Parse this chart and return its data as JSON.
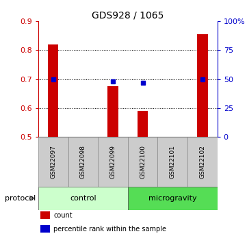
{
  "title": "GDS928 / 1065",
  "samples": [
    "GSM22097",
    "GSM22098",
    "GSM22099",
    "GSM22100",
    "GSM22101",
    "GSM22102"
  ],
  "red_values": [
    0.82,
    null,
    0.675,
    0.59,
    null,
    0.855
  ],
  "blue_values": [
    49.5,
    null,
    48.0,
    47.0,
    null,
    50.0
  ],
  "left_ylim": [
    0.5,
    0.9
  ],
  "right_ylim": [
    0,
    100
  ],
  "left_yticks": [
    0.5,
    0.6,
    0.7,
    0.8,
    0.9
  ],
  "right_yticks": [
    0,
    25,
    50,
    75,
    100
  ],
  "right_yticklabels": [
    "0",
    "25",
    "50",
    "75",
    "100%"
  ],
  "left_tick_color": "#cc0000",
  "right_tick_color": "#0000cc",
  "protocol_groups": [
    {
      "label": "control",
      "start": 0,
      "end": 2,
      "color": "#ccffcc"
    },
    {
      "label": "microgravity",
      "start": 3,
      "end": 5,
      "color": "#55dd55"
    }
  ],
  "protocol_label": "protocol",
  "sample_box_color": "#cccccc",
  "bar_color": "#cc0000",
  "dot_color": "#0000cc",
  "bar_width": 0.35,
  "legend_items": [
    {
      "color": "#cc0000",
      "label": "count"
    },
    {
      "color": "#0000cc",
      "label": "percentile rank within the sample"
    }
  ],
  "grid_color": "black",
  "grid_linestyle": ":"
}
